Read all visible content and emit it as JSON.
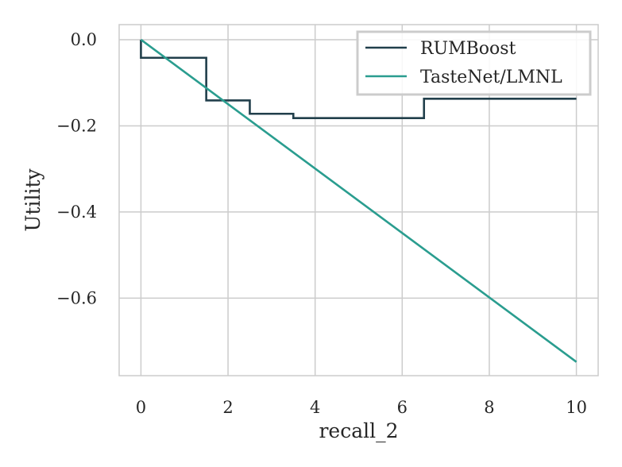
{
  "chart_data": {
    "type": "line",
    "xlabel": "recall_2",
    "ylabel": "Utility",
    "xlim": [
      -0.5,
      10.5
    ],
    "ylim": [
      -0.78,
      0.035
    ],
    "xticks": [
      0,
      2,
      4,
      6,
      8,
      10
    ],
    "yticks": [
      0.0,
      -0.2,
      -0.4,
      -0.6
    ],
    "ytick_labels": [
      "0.0",
      "−0.2",
      "−0.4",
      "−0.6"
    ],
    "grid": true,
    "legend_position": "top-right",
    "series": [
      {
        "name": "RUMBoost",
        "color": "#213f4b",
        "step": true,
        "x": [
          0,
          0,
          1.5,
          1.5,
          2.5,
          2.5,
          3.5,
          3.5,
          6.5,
          6.5,
          10
        ],
        "y": [
          0.0,
          -0.042,
          -0.042,
          -0.141,
          -0.141,
          -0.172,
          -0.172,
          -0.182,
          -0.182,
          -0.137,
          -0.137
        ]
      },
      {
        "name": "TasteNet/LMNL",
        "color": "#2a9d8f",
        "step": false,
        "x": [
          0,
          10
        ],
        "y": [
          0.0,
          -0.748
        ]
      }
    ]
  }
}
